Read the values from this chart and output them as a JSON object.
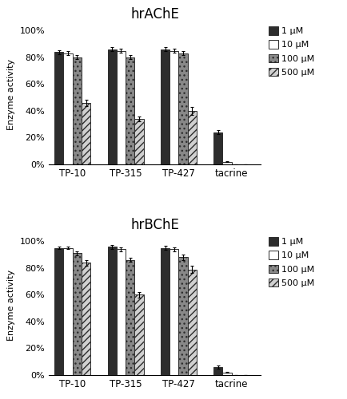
{
  "title_upper": "hrAChE",
  "title_lower": "hrBChE",
  "ylabel": "Enzyme activity",
  "categories": [
    "TP-10",
    "TP-315",
    "TP-427",
    "tacrine"
  ],
  "legend_labels": [
    "1 μM",
    "10 μM",
    "100 μM",
    "500 μM"
  ],
  "upper_data": {
    "1uM": [
      84,
      86,
      86,
      24
    ],
    "10uM": [
      83,
      85,
      85,
      2
    ],
    "100uM": [
      80,
      80,
      83,
      0
    ],
    "500uM": [
      46,
      34,
      40,
      0
    ]
  },
  "upper_err": {
    "1uM": [
      1.5,
      1.5,
      1.5,
      1.5
    ],
    "10uM": [
      1.5,
      1.5,
      1.5,
      0.3
    ],
    "100uM": [
      1.5,
      1.5,
      1.5,
      0
    ],
    "500uM": [
      2.5,
      2.0,
      3.0,
      0
    ]
  },
  "lower_data": {
    "1uM": [
      95,
      96,
      95,
      6
    ],
    "10uM": [
      95,
      94,
      94,
      2
    ],
    "100uM": [
      91,
      86,
      88,
      0
    ],
    "500uM": [
      84,
      60,
      79,
      0
    ]
  },
  "lower_err": {
    "1uM": [
      1.0,
      1.5,
      1.5,
      1.0
    ],
    "10uM": [
      1.0,
      1.5,
      1.5,
      0.3
    ],
    "100uM": [
      1.5,
      1.5,
      2.0,
      0
    ],
    "500uM": [
      2.0,
      2.0,
      2.5,
      0
    ]
  },
  "bar_width": 0.17,
  "colors": [
    "#2d2d2d",
    "#ffffff",
    "#888888",
    "#d0d0d0"
  ],
  "hatches": [
    null,
    null,
    "...",
    "////"
  ],
  "edgecolors": [
    "#2d2d2d",
    "#2d2d2d",
    "#2d2d2d",
    "#2d2d2d"
  ],
  "ylim": [
    0,
    105
  ],
  "yticks": [
    0,
    20,
    40,
    60,
    80,
    100
  ],
  "yticklabels": [
    "0%",
    "20%",
    "40%",
    "60%",
    "80%",
    "100%"
  ],
  "background_color": "#ffffff",
  "figsize": [
    4.35,
    5.0
  ],
  "dpi": 100
}
